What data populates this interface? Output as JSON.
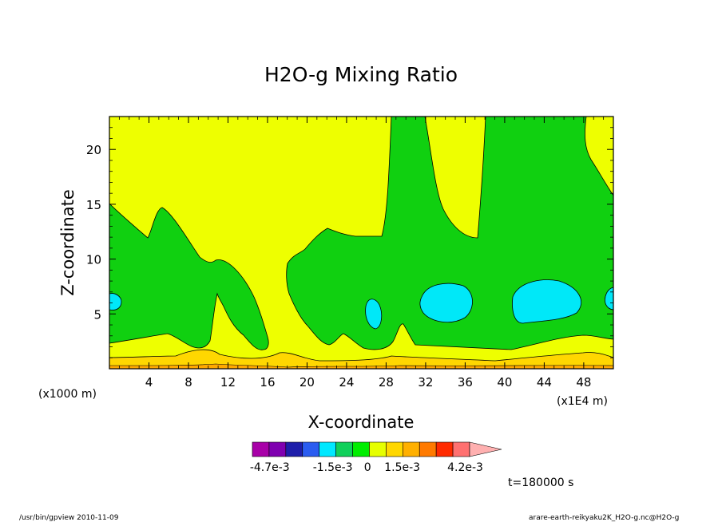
{
  "chart_data": {
    "type": "contour",
    "title": "H2O-g Mixing Ratio",
    "xlabel": "X-coordinate",
    "ylabel": "Z-coordinate",
    "x_unit_left": "(x1000 m)",
    "x_unit_right": "(x1E4 m)",
    "xlim": [
      0,
      51
    ],
    "ylim": [
      0,
      23
    ],
    "x_ticks": [
      4,
      8,
      12,
      16,
      20,
      24,
      28,
      32,
      36,
      40,
      44,
      48
    ],
    "y_ticks": [
      5,
      10,
      15,
      20
    ],
    "time_label": "t=180000 s",
    "colorbar": {
      "colors": [
        "#a800a8",
        "#7f00b0",
        "#1e1eaa",
        "#2a5cf0",
        "#00e8ff",
        "#10d05a",
        "#00ee00",
        "#e6ff00",
        "#ffd700",
        "#ffb000",
        "#ff7a00",
        "#ff2a00",
        "#ff7070",
        "#ffb0b0"
      ],
      "tick_labels": [
        "-4.7e-3",
        "-1.5e-3",
        "0",
        "1.5e-3",
        "4.2e-3"
      ]
    },
    "regions": [
      {
        "name": "yellow",
        "color": "#eeff00"
      },
      {
        "name": "green",
        "color": "#10d010"
      },
      {
        "name": "cyan",
        "color": "#00e8f8"
      },
      {
        "name": "light-orange",
        "color": "#ffd700"
      },
      {
        "name": "orange",
        "color": "#ffa800"
      }
    ]
  },
  "footer": {
    "left": "/usr/bin/gpview  2010-11-09",
    "right": "arare-earth-reikyaku2K_H2O-g.nc@H2O-g"
  }
}
